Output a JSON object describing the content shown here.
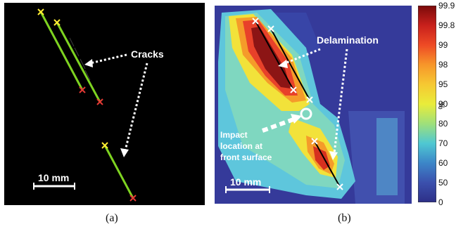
{
  "panel_a": {
    "annotation": "Cracks",
    "scale_label": "10 mm",
    "caption": "(a)"
  },
  "panel_b": {
    "annotation_delamination": "Delamination",
    "annotation_impact": [
      "Impact",
      "location at",
      "front surface"
    ],
    "scale_label": "10 mm",
    "caption": "(b)"
  },
  "colorbar": {
    "ticks": [
      "99.9",
      "99.8",
      "99",
      "98",
      "95",
      "90",
      "80",
      "70",
      "60",
      "50",
      "0"
    ],
    "unit": "%"
  },
  "colors": {
    "crack_line": "#7ed321",
    "start_marker": "#ffee33",
    "end_marker": "#e53935"
  }
}
